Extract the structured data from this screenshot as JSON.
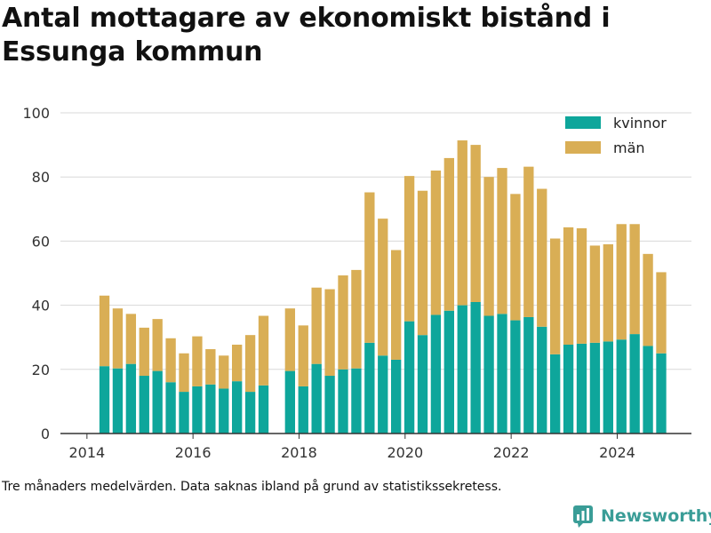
{
  "page": {
    "title": "Antal mottagare av ekonomiskt bistånd i Essunga kommun",
    "footnote": "Tre månaders medelvärden. Data saknas ibland på grund av statistikssekretess.",
    "brand": "Newsworthy"
  },
  "colors": {
    "kvinnor": "#0ea69b",
    "man": "#d9ae55",
    "grid": "#d8d8d8",
    "axis": "#333333",
    "brand": "#3a9d97"
  },
  "chart_data": {
    "type": "bar",
    "stacked": true,
    "title": "Antal mottagare av ekonomiskt bistånd i Essunga kommun",
    "xlabel": "",
    "ylabel": "",
    "ylim": [
      0,
      100
    ],
    "yticks": [
      0,
      20,
      40,
      60,
      80,
      100
    ],
    "xticks": [
      2014,
      2016,
      2018,
      2020,
      2022,
      2024
    ],
    "xlim": [
      2013.5,
      2025.4
    ],
    "grid": true,
    "legend_position": "top-right",
    "legend": [
      "kvinnor",
      "män"
    ],
    "x": [
      2014.33,
      2014.58,
      2014.83,
      2015.08,
      2015.33,
      2015.58,
      2015.83,
      2016.08,
      2016.33,
      2016.58,
      2016.83,
      2017.08,
      2017.33,
      2017.83,
      2018.08,
      2018.33,
      2018.58,
      2018.83,
      2019.08,
      2019.33,
      2019.58,
      2019.83,
      2020.08,
      2020.33,
      2020.58,
      2020.83,
      2021.08,
      2021.33,
      2021.58,
      2021.83,
      2022.08,
      2022.33,
      2022.58,
      2022.83,
      2023.08,
      2023.33,
      2023.58,
      2023.83,
      2024.08,
      2024.33,
      2024.58,
      2024.83
    ],
    "series": [
      {
        "name": "kvinnor",
        "values": [
          21,
          20.3,
          21.7,
          18,
          19.5,
          16,
          13,
          14.7,
          15.3,
          14,
          16.3,
          13,
          15,
          19.5,
          14.7,
          21.7,
          18,
          20,
          20.3,
          28.3,
          24.3,
          23,
          35,
          30.7,
          37,
          38.3,
          40,
          41,
          36.7,
          37.3,
          35.3,
          36.3,
          33.3,
          24.7,
          27.7,
          28,
          28.3,
          28.7,
          29.3,
          31,
          27.3,
          25
        ]
      },
      {
        "name": "män",
        "values": [
          22,
          18.7,
          15.6,
          15,
          16.2,
          13.7,
          12,
          15.6,
          11,
          10.3,
          11.4,
          17.7,
          21.7,
          19.5,
          19,
          23.8,
          27,
          29.3,
          30.7,
          46.9,
          42.7,
          34.2,
          45.3,
          45,
          45,
          47.6,
          51.4,
          49,
          43.3,
          45.5,
          39.4,
          46.9,
          43,
          36.1,
          36.6,
          36,
          30.3,
          30.3,
          36,
          34.3,
          28.7,
          25.3
        ]
      }
    ]
  }
}
